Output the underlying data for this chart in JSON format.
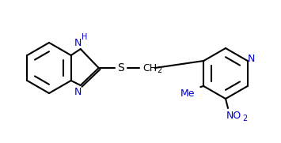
{
  "bg_color": "#ffffff",
  "bond_color": "#000000",
  "N_color": "#0000cc",
  "S_color": "#000000",
  "label_color_blue": "#0000cc",
  "label_color_black": "#000000",
  "figsize": [
    3.55,
    1.81
  ],
  "dpi": 100,
  "atoms": {
    "H": "H",
    "N1": "N",
    "N2": "N",
    "S": "S",
    "CH2": "CH",
    "N3": "N",
    "Me": "Me",
    "NO2": "NO"
  }
}
